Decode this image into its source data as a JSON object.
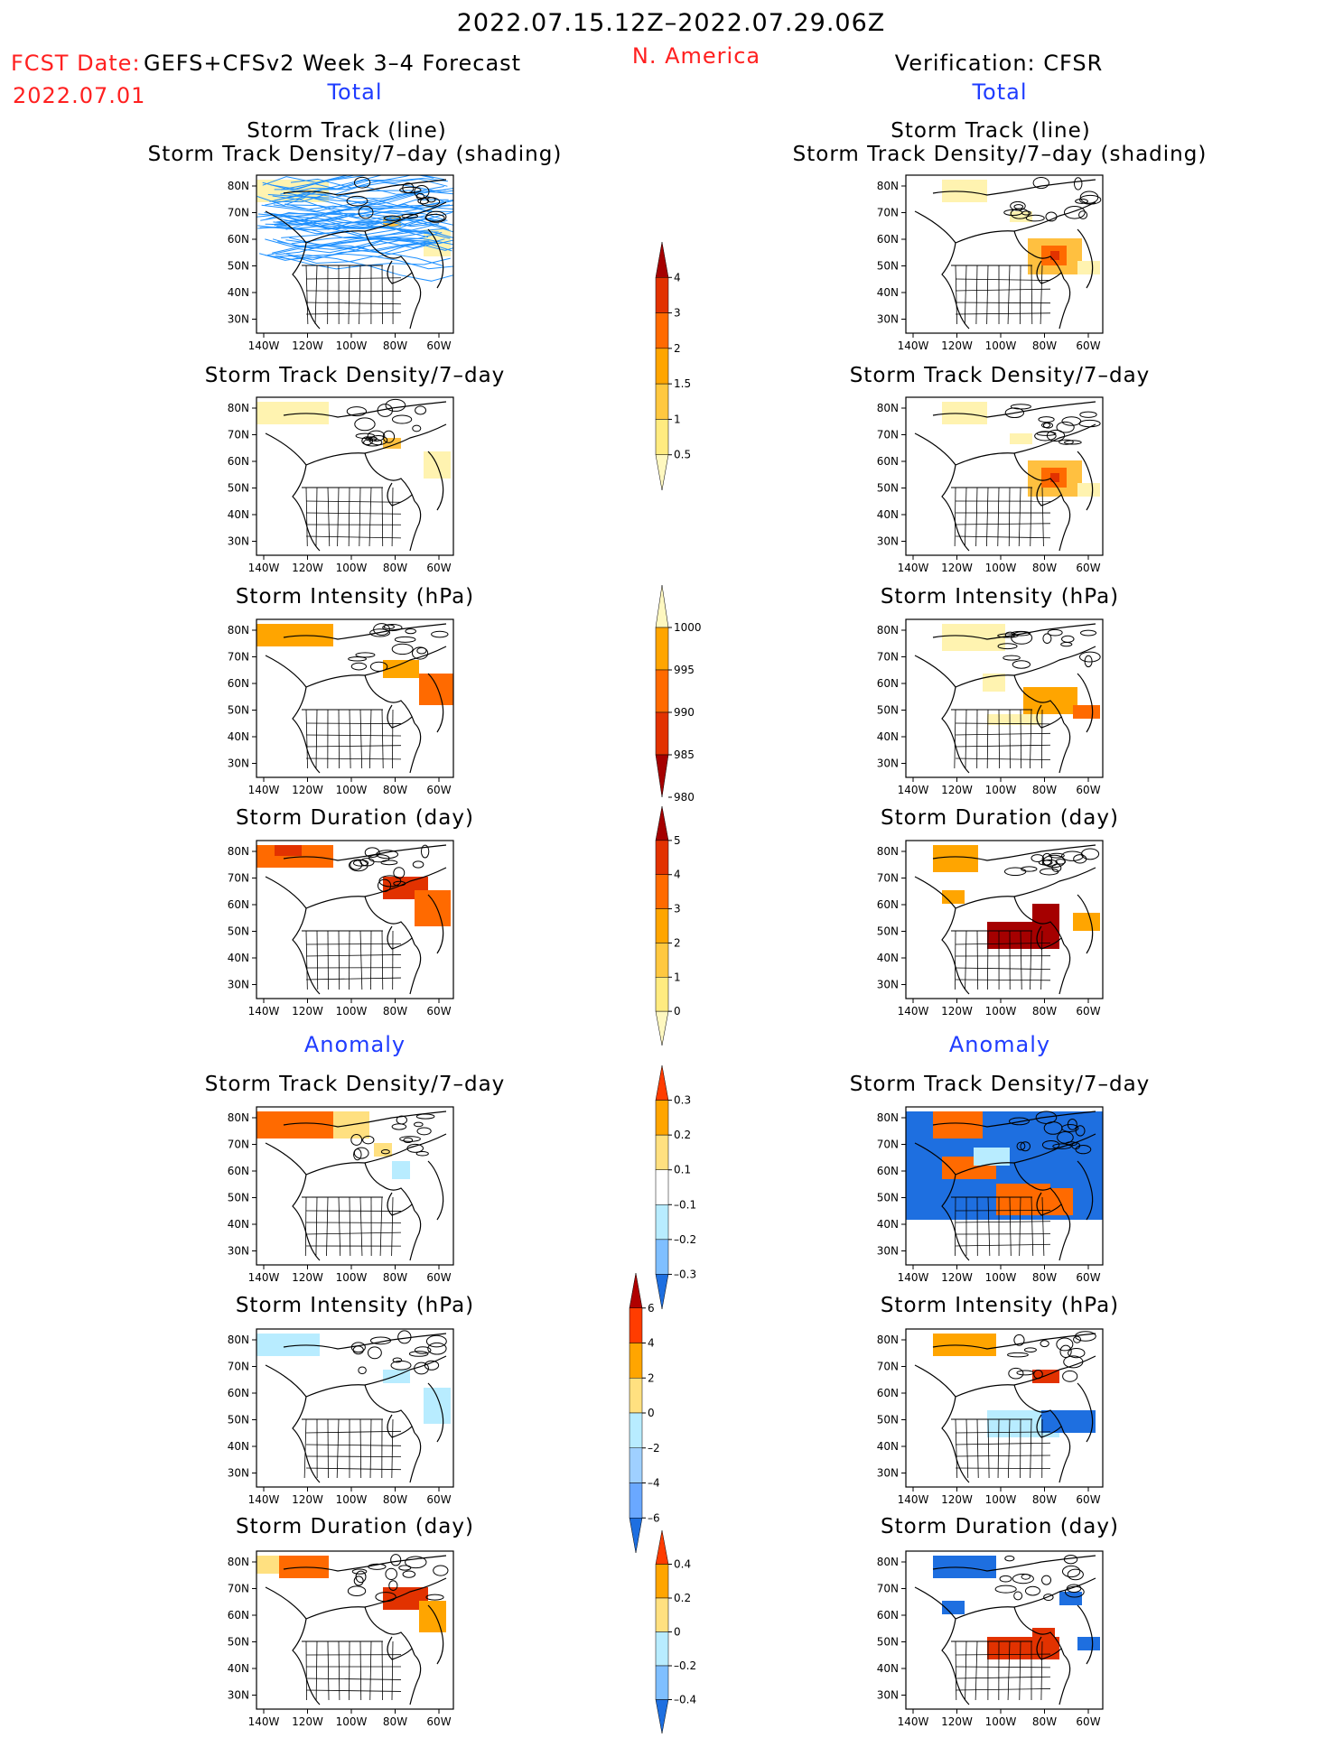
{
  "header": {
    "period": "2022.07.15.12Z–2022.07.29.06Z",
    "fcst_label": "FCST Date:",
    "fcst_date": "2022.07.01",
    "model": "GEFS+CFSv2 Week 3–4 Forecast",
    "region": "N. America",
    "verification": "Verification: CFSR"
  },
  "sections": {
    "total": "Total",
    "anomaly": "Anomaly"
  },
  "panel_titles": {
    "track_line": "Storm Track (line)",
    "track_shading": "Storm Track Density/7–day (shading)",
    "density": "Storm Track Density/7–day",
    "intensity": "Storm Intensity (hPa)",
    "duration": "Storm Duration (day)"
  },
  "axes": {
    "lat_ticks": [
      "80N",
      "70N",
      "60N",
      "50N",
      "40N",
      "30N"
    ],
    "lon_ticks": [
      "140W",
      "120W",
      "100W",
      "80W",
      "60W"
    ]
  },
  "colorbars": [
    {
      "name": "density-total",
      "labels": [
        "4",
        "3",
        "2",
        "1.5",
        "1",
        "0.5"
      ],
      "colors": [
        "#a50000",
        "#e23200",
        "#ff6a00",
        "#ffa500",
        "#ffc840",
        "#ffeb80",
        "#fff8c0"
      ]
    },
    {
      "name": "intensity-total",
      "labels": [
        "1000",
        "995",
        "990",
        "985",
        "980"
      ],
      "colors": [
        "#fff8c0",
        "#ffa500",
        "#ff6a00",
        "#e23200",
        "#a50000"
      ]
    },
    {
      "name": "duration-total",
      "labels": [
        "5",
        "4",
        "3",
        "2",
        "1",
        "0"
      ],
      "colors": [
        "#a50000",
        "#e23200",
        "#ff6a00",
        "#ffa500",
        "#ffc840",
        "#ffeb80",
        "#fff8c0"
      ]
    },
    {
      "name": "density-anom",
      "labels": [
        "0.3",
        "0.2",
        "0.1",
        "–0.1",
        "–0.2",
        "–0.3"
      ],
      "colors": [
        "#ff3c00",
        "#ffa500",
        "#ffe080",
        "#ffffff",
        "#b8ecff",
        "#7fbfff",
        "#1e6fe0"
      ]
    },
    {
      "name": "intensity-anom",
      "labels": [
        "6",
        "4",
        "2",
        "0",
        "–2",
        "–4",
        "–6"
      ],
      "colors": [
        "#b00000",
        "#ff3c00",
        "#ffa500",
        "#ffe080",
        "#b8ecff",
        "#9fd0ff",
        "#6aa8ff",
        "#1e6fe0"
      ]
    },
    {
      "name": "duration-anom",
      "labels": [
        "0.4",
        "0.2",
        "0",
        "–0.2",
        "–0.4"
      ],
      "colors": [
        "#ff3c00",
        "#ffa500",
        "#ffe080",
        "#b8ecff",
        "#7fbfff",
        "#1e6fe0"
      ]
    }
  ],
  "colors": {
    "red_text": "#ff2020",
    "blue_text": "#1f3cff",
    "track_lines": "#1e90ff",
    "coast": "#000000"
  }
}
